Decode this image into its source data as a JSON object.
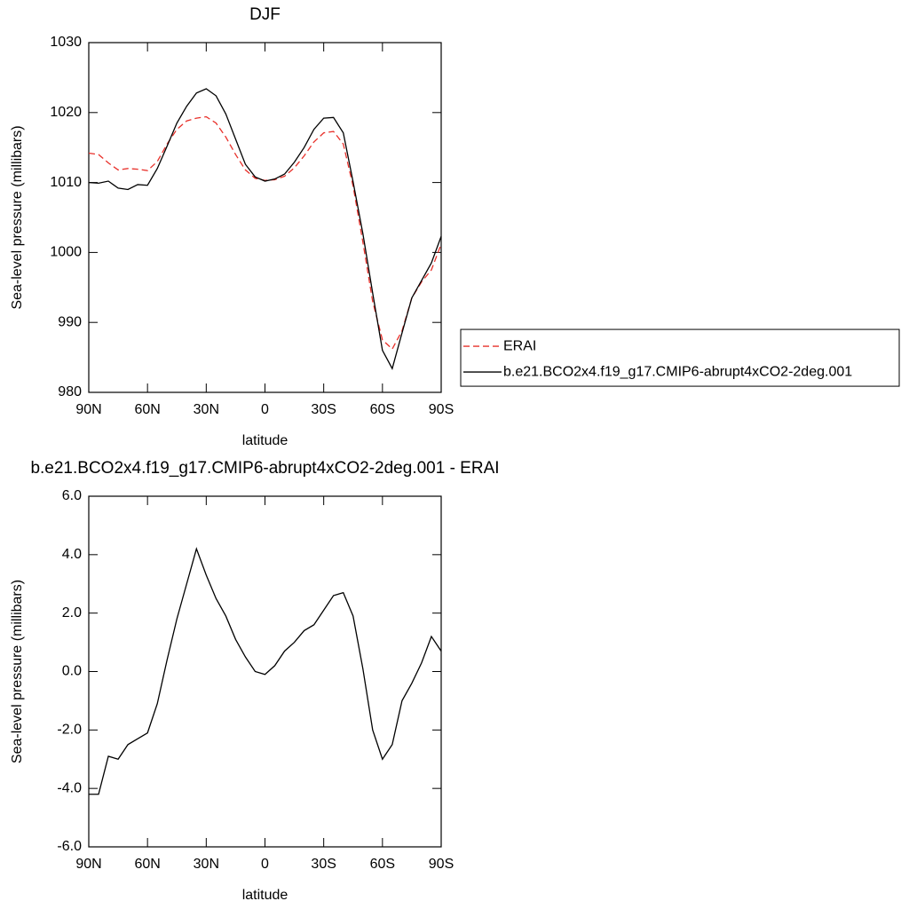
{
  "chart_data": [
    {
      "type": "line",
      "title": "DJF",
      "xlabel": "latitude",
      "ylabel": "Sea-level pressure (millibars)",
      "x": [
        90,
        85,
        80,
        75,
        70,
        65,
        60,
        55,
        50,
        45,
        40,
        35,
        30,
        25,
        20,
        15,
        10,
        5,
        0,
        -5,
        -10,
        -15,
        -20,
        -25,
        -30,
        -35,
        -40,
        -45,
        -50,
        -55,
        -60,
        -65,
        -70,
        -75,
        -80,
        -85,
        -90
      ],
      "xlim": [
        90,
        -90
      ],
      "xticks": [
        {
          "value": 90,
          "label": "90N"
        },
        {
          "value": 60,
          "label": "60N"
        },
        {
          "value": 30,
          "label": "30N"
        },
        0,
        {
          "value": -30,
          "label": "30S"
        },
        {
          "value": -60,
          "label": "60S"
        },
        {
          "value": -90,
          "label": "90S"
        }
      ],
      "ylim": [
        980,
        1030
      ],
      "yticks": [
        980,
        990,
        1000,
        1010,
        1020,
        1030
      ],
      "legend": "right",
      "series": [
        {
          "name": "ERAI",
          "color": "#e8302a",
          "style": "dashed",
          "values": [
            1014.2,
            1014.0,
            1012.8,
            1011.8,
            1012.0,
            1011.9,
            1011.7,
            1013.0,
            1015.5,
            1017.6,
            1018.8,
            1019.2,
            1019.4,
            1018.5,
            1016.5,
            1014.0,
            1011.8,
            1010.6,
            1010.3,
            1010.4,
            1010.9,
            1012.1,
            1013.8,
            1015.8,
            1017.1,
            1017.3,
            1015.5,
            1009.5,
            1001.5,
            993.0,
            987.5,
            986.2,
            988.8,
            993.5,
            995.8,
            997.5,
            1001.2
          ]
        },
        {
          "name": "b.e21.BCO2x4.f19_g17.CMIP6-abrupt4xCO2-2deg.001",
          "color": "#000000",
          "style": "solid",
          "values": [
            1010.0,
            1009.9,
            1010.2,
            1009.2,
            1009.0,
            1009.7,
            1009.6,
            1012.0,
            1015.2,
            1018.5,
            1020.9,
            1022.8,
            1023.4,
            1022.4,
            1019.8,
            1016.2,
            1012.6,
            1010.8,
            1010.2,
            1010.5,
            1011.2,
            1012.9,
            1015.0,
            1017.6,
            1019.2,
            1019.3,
            1017.1,
            1010.1,
            1002.7,
            994.2,
            986.0,
            983.4,
            988.5,
            993.5,
            996.0,
            998.5,
            1002.3
          ]
        }
      ]
    },
    {
      "type": "line",
      "title": "b.e21.BCO2x4.f19_g17.CMIP6-abrupt4xCO2-2deg.001 - ERAI",
      "xlabel": "latitude",
      "ylabel": "Sea-level pressure (millibars)",
      "x": [
        90,
        85,
        80,
        75,
        70,
        65,
        60,
        55,
        50,
        45,
        40,
        35,
        30,
        25,
        20,
        15,
        10,
        5,
        0,
        -5,
        -10,
        -15,
        -20,
        -25,
        -30,
        -35,
        -40,
        -45,
        -50,
        -55,
        -60,
        -65,
        -70,
        -75,
        -80,
        -85,
        -90
      ],
      "xlim": [
        90,
        -90
      ],
      "xticks": [
        {
          "value": 90,
          "label": "90N"
        },
        {
          "value": 60,
          "label": "60N"
        },
        {
          "value": 30,
          "label": "30N"
        },
        0,
        {
          "value": -30,
          "label": "30S"
        },
        {
          "value": -60,
          "label": "60S"
        },
        {
          "value": -90,
          "label": "90S"
        }
      ],
      "ylim": [
        -6,
        6
      ],
      "yticks": [
        {
          "value": -6,
          "label": "-6.0"
        },
        {
          "value": -4,
          "label": "-4.0"
        },
        {
          "value": -2,
          "label": "-2.0"
        },
        {
          "value": 0,
          "label": "0.0"
        },
        {
          "value": 2,
          "label": "2.0"
        },
        {
          "value": 4,
          "label": "4.0"
        },
        {
          "value": 6,
          "label": "6.0"
        }
      ],
      "color": "#000000",
      "values": [
        -4.2,
        -4.2,
        -2.9,
        -3.0,
        -2.5,
        -2.3,
        -2.1,
        -1.1,
        0.4,
        1.8,
        3.0,
        4.2,
        3.3,
        2.5,
        1.9,
        1.1,
        0.5,
        0.0,
        -0.1,
        0.2,
        0.7,
        1.0,
        1.4,
        1.6,
        2.1,
        2.6,
        2.7,
        1.9,
        0.1,
        -2.0,
        -3.0,
        -2.5,
        -1.0,
        -0.4,
        0.3,
        1.2,
        0.7
      ]
    }
  ]
}
